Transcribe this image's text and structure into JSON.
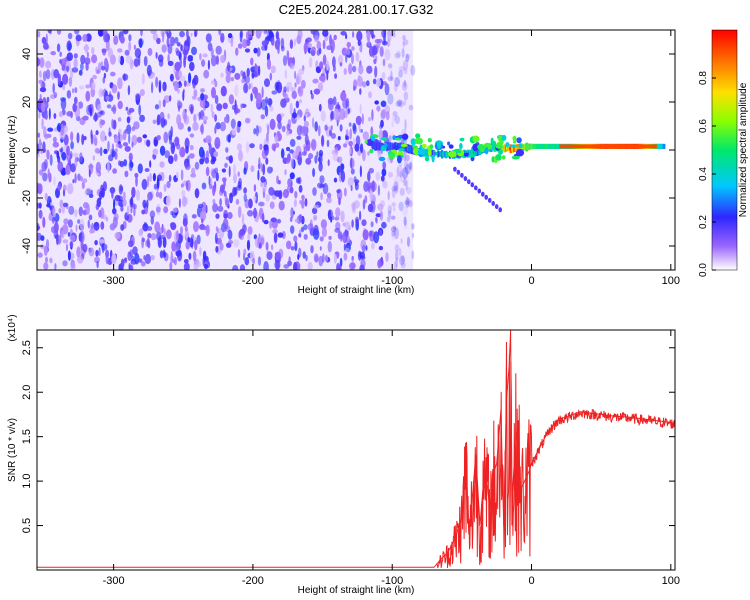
{
  "title": "C2E5.2024.281.00.17.G32",
  "chart_data": [
    {
      "type": "heatmap",
      "xlabel": "Height of straight line (km)",
      "ylabel": "Frequency (Hz)",
      "xlim": [
        -355,
        103
      ],
      "ylim": [
        -50,
        50
      ],
      "xticks": [
        -300,
        -200,
        -100,
        0,
        100
      ],
      "yticks": [
        -40,
        -20,
        0,
        20,
        40
      ],
      "noise_region_x": [
        -355,
        -85
      ],
      "signal_band": [
        {
          "x": -115,
          "y": 1.5,
          "level": 0.15
        },
        {
          "x": -95,
          "y": 1.5,
          "level": 0.2
        },
        {
          "x": -80,
          "y": -1,
          "level": 0.3
        },
        {
          "x": -60,
          "y": -2,
          "level": 0.35
        },
        {
          "x": -45,
          "y": -1.5,
          "level": 0.35
        },
        {
          "x": -30,
          "y": 1,
          "level": 0.4
        },
        {
          "x": -15,
          "y": 0.5,
          "level": 0.9
        },
        {
          "x": 0,
          "y": 1.5,
          "level": 0.5
        },
        {
          "x": 25,
          "y": 1.5,
          "level": 0.45
        },
        {
          "x": 50,
          "y": 1.5,
          "level": 0.9
        },
        {
          "x": 75,
          "y": 1.5,
          "level": 0.95
        },
        {
          "x": 95,
          "y": 1.5,
          "level": 0.3
        }
      ],
      "colorbar": {
        "label": "Normalized spectral amplitude",
        "range": [
          0.0,
          1.0
        ],
        "ticks": [
          0.0,
          0.2,
          0.4,
          0.6,
          0.8
        ],
        "tick_labels": [
          "0.0",
          "0.2",
          "0.4",
          "0.6",
          "0.8"
        ]
      },
      "grid": false
    },
    {
      "type": "line",
      "xlabel": "Height of straight line (km)",
      "ylabel": "SNR (10 * v/v)",
      "y_multiplier_label": "(x10⁴)",
      "xlim": [
        -355,
        103
      ],
      "ylim": [
        0,
        2.7
      ],
      "xticks": [
        -300,
        -200,
        -100,
        0,
        100
      ],
      "yticks": [
        0.5,
        1.0,
        1.5,
        2.0,
        2.5
      ],
      "ytick_labels": [
        "0.5",
        "1.0",
        "1.5",
        "2.0",
        "2.5"
      ],
      "series": [
        {
          "color": "#ee2222",
          "x": [
            -355,
            -300,
            -200,
            -100,
            -70,
            -65,
            -60,
            -55,
            -50,
            -47,
            -45,
            -42,
            -40,
            -37,
            -35,
            -32,
            -30,
            -27,
            -25,
            -22,
            -20,
            -18,
            -16,
            -15,
            -14,
            -12,
            -10,
            -8,
            -5,
            -2,
            0,
            5,
            10,
            15,
            20,
            25,
            30,
            35,
            40,
            50,
            60,
            70,
            80,
            90,
            100,
            103
          ],
          "y": [
            0.03,
            0.03,
            0.03,
            0.03,
            0.03,
            0.12,
            0.2,
            0.35,
            0.6,
            1.25,
            0.4,
            0.9,
            1.3,
            0.5,
            0.9,
            1.0,
            0.7,
            1.1,
            1.2,
            1.8,
            0.5,
            1.9,
            2.3,
            2.7,
            0.8,
            1.3,
            1.6,
            0.9,
            1.0,
            1.1,
            1.2,
            1.35,
            1.5,
            1.62,
            1.7,
            1.72,
            1.75,
            1.78,
            1.77,
            1.75,
            1.73,
            1.72,
            1.7,
            1.68,
            1.66,
            1.65
          ]
        }
      ],
      "grid": false
    }
  ]
}
